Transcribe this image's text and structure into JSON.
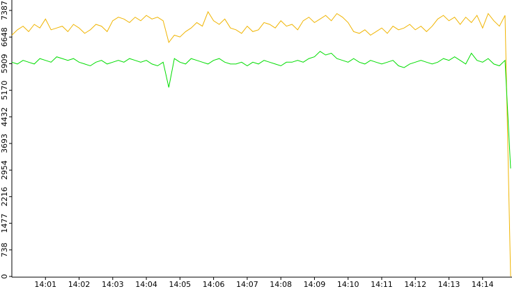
{
  "chart_data": {
    "type": "line",
    "categories": [
      null,
      null,
      null,
      null,
      null,
      null,
      "14:01",
      null,
      null,
      null,
      null,
      null,
      "14:02",
      null,
      null,
      null,
      null,
      null,
      "14:03",
      null,
      null,
      null,
      null,
      null,
      "14:04",
      null,
      null,
      null,
      null,
      null,
      "14:05",
      null,
      null,
      null,
      null,
      null,
      "14:06",
      null,
      null,
      null,
      null,
      null,
      "14:07",
      null,
      null,
      null,
      null,
      null,
      "14:08",
      null,
      null,
      null,
      null,
      null,
      "14:09",
      null,
      null,
      null,
      null,
      null,
      "14:10",
      null,
      null,
      null,
      null,
      null,
      "14:11",
      null,
      null,
      null,
      null,
      null,
      "14:12",
      null,
      null,
      null,
      null,
      null,
      "14:13",
      null,
      null,
      null,
      null,
      null,
      "14:14",
      null,
      null,
      null,
      null,
      null
    ],
    "series": [
      {
        "color": "#f0b400",
        "values": [
          6700,
          6850,
          6950,
          6800,
          7000,
          6900,
          7150,
          6850,
          6900,
          6950,
          6800,
          7000,
          6900,
          6750,
          6850,
          7000,
          6950,
          6800,
          7100,
          7200,
          7150,
          7050,
          7200,
          7100,
          7250,
          7150,
          7200,
          7100,
          6500,
          6700,
          6650,
          6800,
          6900,
          7050,
          6950,
          7350,
          7100,
          7000,
          7150,
          6900,
          6850,
          6750,
          6950,
          6800,
          6850,
          7050,
          7000,
          6900,
          7100,
          6950,
          7000,
          6850,
          7100,
          7200,
          7050,
          7150,
          7250,
          7100,
          7300,
          7200,
          7050,
          6800,
          6750,
          6850,
          6700,
          6800,
          6900,
          6750,
          6950,
          6850,
          6900,
          7000,
          6850,
          6950,
          6800,
          6950,
          7150,
          7250,
          7100,
          7200,
          7000,
          7200,
          7050,
          7250,
          6900,
          7300,
          7100,
          6950,
          7250,
          0
        ]
      },
      {
        "color": "#00dd00",
        "values": [
          5950,
          5900,
          6000,
          5950,
          5900,
          6050,
          6000,
          5950,
          6100,
          6050,
          6000,
          6050,
          5950,
          5900,
          5850,
          5950,
          6000,
          5900,
          5950,
          6000,
          5950,
          6050,
          6000,
          5950,
          6000,
          5900,
          5850,
          5950,
          5250,
          6050,
          5950,
          5900,
          6050,
          6000,
          5950,
          5900,
          6000,
          6050,
          5950,
          5900,
          5900,
          5950,
          5850,
          5950,
          5900,
          6000,
          5950,
          5900,
          5850,
          5950,
          5950,
          6000,
          5950,
          6050,
          6100,
          6250,
          6150,
          6200,
          6050,
          6000,
          5950,
          6050,
          5950,
          5900,
          6000,
          5950,
          5900,
          5950,
          6000,
          5850,
          5800,
          5900,
          5950,
          6000,
          5950,
          5900,
          5950,
          6050,
          6000,
          6100,
          6000,
          5900,
          6200,
          6000,
          5950,
          6050,
          5900,
          5850,
          6000,
          3000
        ]
      }
    ],
    "ylim": [
      0,
      7387
    ],
    "yticks": [
      0,
      738,
      1477,
      2216,
      2954,
      3693,
      4432,
      5170,
      5909,
      6648,
      7387
    ]
  }
}
